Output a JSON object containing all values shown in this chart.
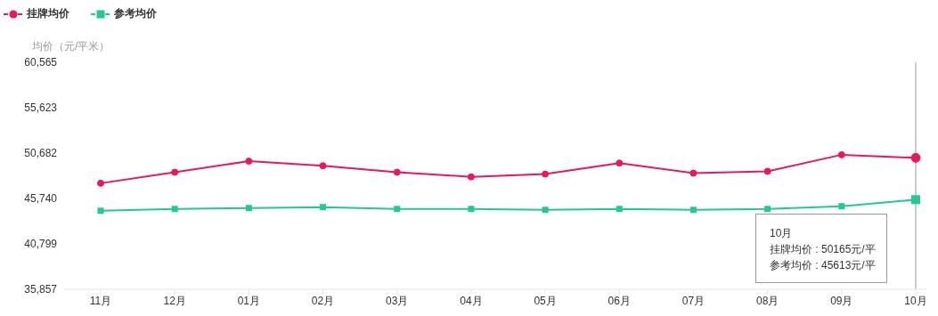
{
  "chart_data": {
    "type": "line",
    "ylabel": "均价（元/平米）",
    "categories": [
      "11月",
      "12月",
      "01月",
      "02月",
      "03月",
      "04月",
      "05月",
      "06月",
      "07月",
      "08月",
      "09月",
      "10月"
    ],
    "series": [
      {
        "name": "挂牌均价",
        "color": "#e8185e",
        "marker": "circle",
        "values": [
          47400,
          48600,
          49800,
          49300,
          48600,
          48100,
          48400,
          49600,
          48500,
          48700,
          50500,
          50165
        ]
      },
      {
        "name": "参考均价",
        "color": "#24c98e",
        "marker": "square",
        "values": [
          44400,
          44600,
          44700,
          44800,
          44600,
          44600,
          44500,
          44600,
          44500,
          44600,
          44900,
          45613
        ]
      }
    ],
    "ylim": [
      35857,
      60565
    ],
    "yticks": [
      {
        "value": 35857,
        "label": "35,857"
      },
      {
        "value": 40799,
        "label": "40,799"
      },
      {
        "value": 45740,
        "label": "45,740"
      },
      {
        "value": 50682,
        "label": "50,682"
      },
      {
        "value": 55623,
        "label": "55,623"
      },
      {
        "value": 60565,
        "label": "60,565"
      }
    ],
    "grid": false,
    "legend": "top left",
    "ref_lines": [
      {
        "axis": "x",
        "value": "10月",
        "color": "#999999"
      }
    ],
    "annotations": [
      "10月",
      "挂牌均价 : 50165元/平",
      "参考均价 : 45613元/平"
    ]
  }
}
